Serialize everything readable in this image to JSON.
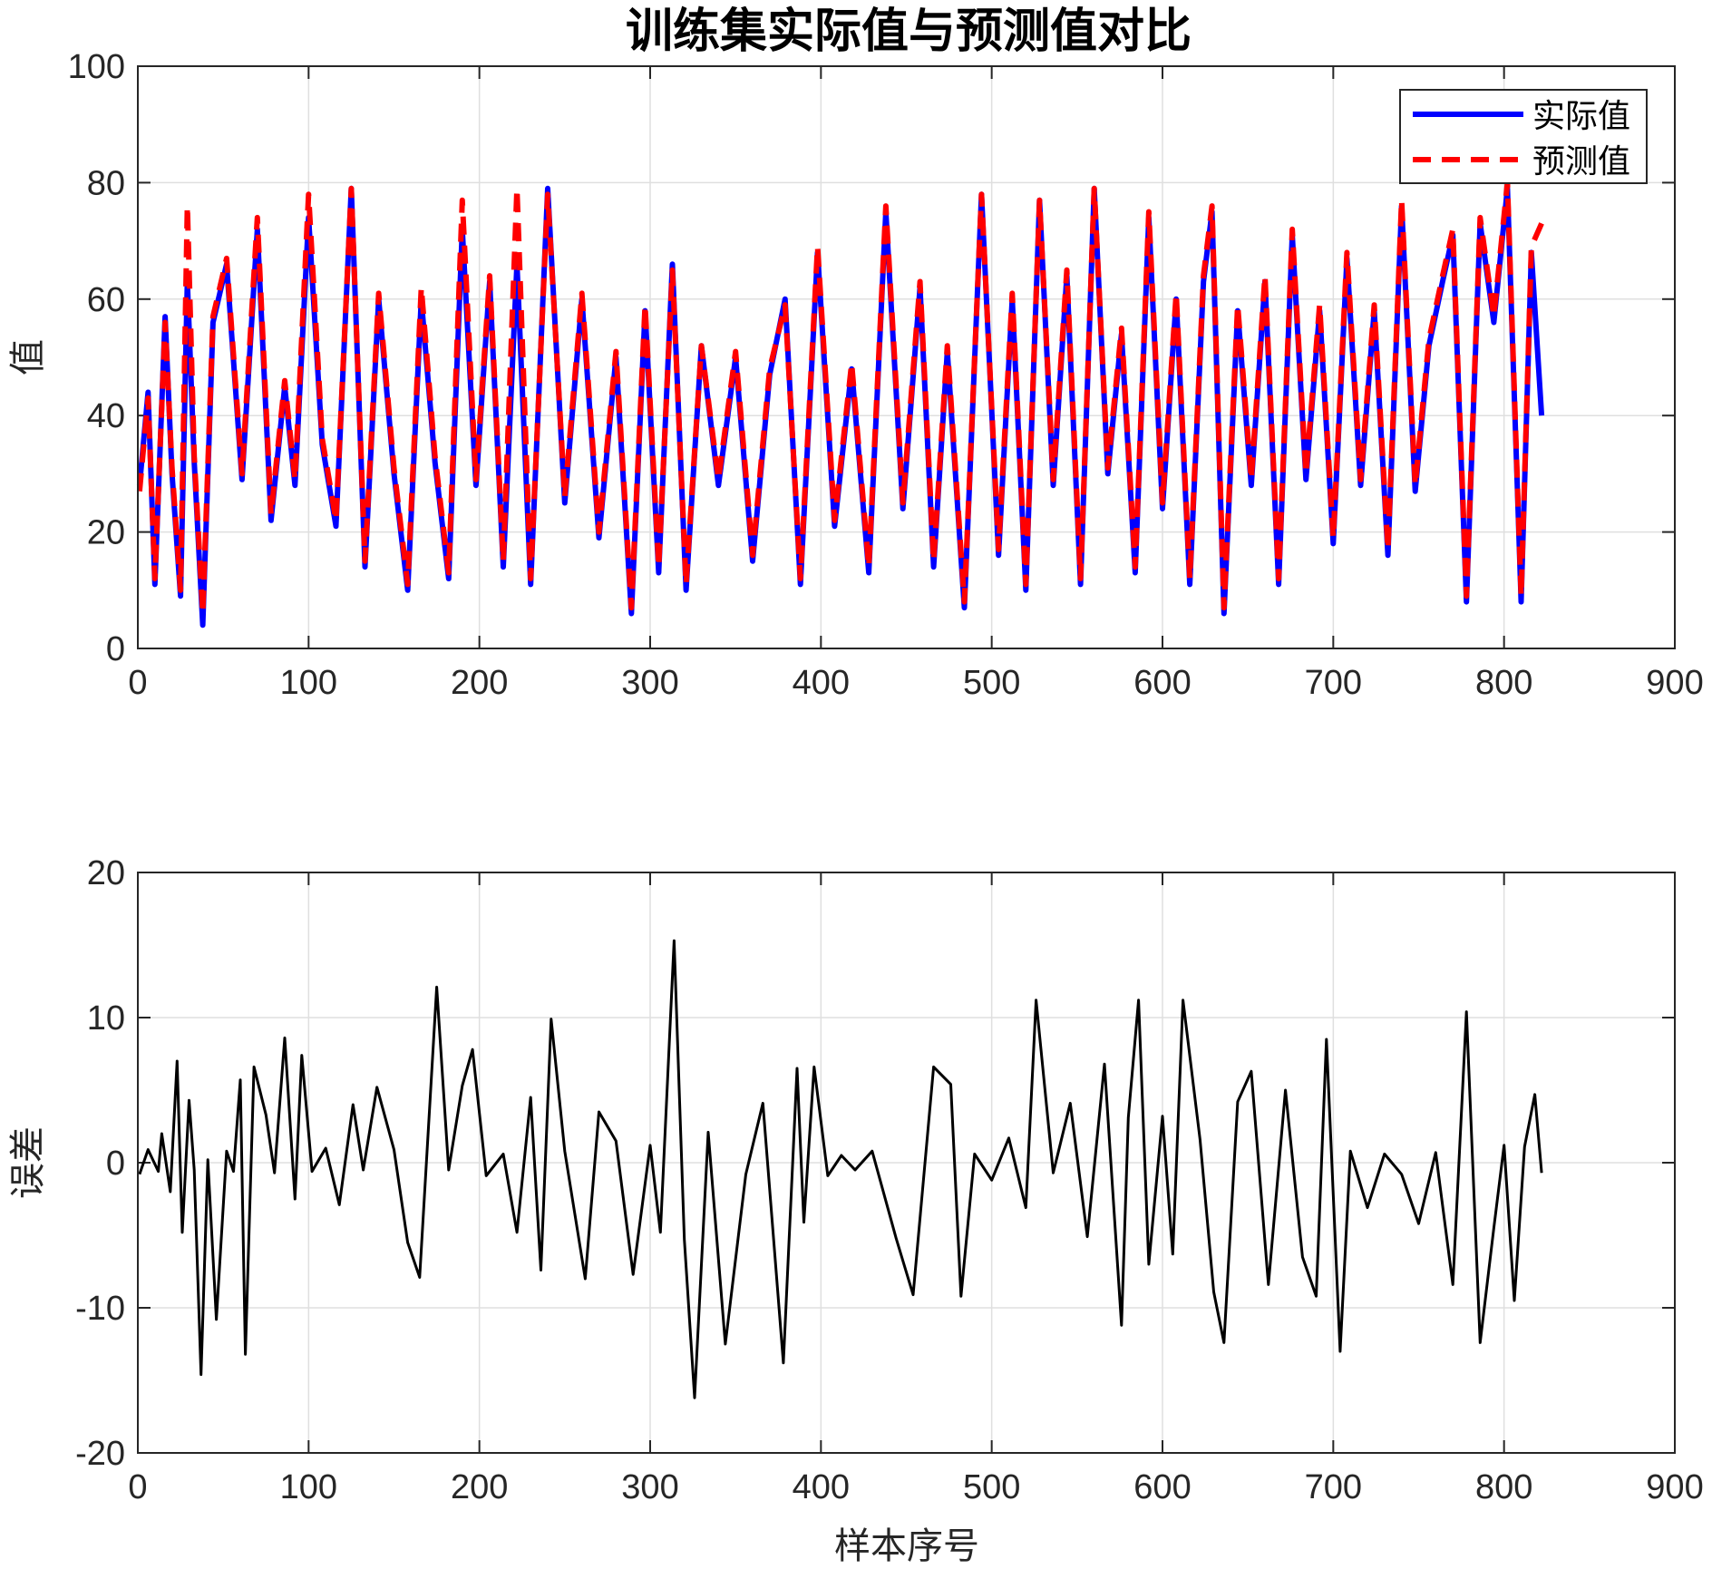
{
  "chart_data": [
    {
      "type": "line",
      "title": "训练集实际值与预测值对比",
      "xlabel": "",
      "ylabel": "值",
      "xlim": [
        0,
        900
      ],
      "ylim": [
        0,
        100
      ],
      "xticks": [
        0,
        100,
        200,
        300,
        400,
        500,
        600,
        700,
        800,
        900
      ],
      "yticks": [
        0,
        20,
        40,
        60,
        80,
        100
      ],
      "grid": true,
      "legend_position": "top-right",
      "series": [
        {
          "name": "实际值",
          "color": "#0000ff",
          "style": "solid",
          "x": [
            1,
            6,
            10,
            16,
            20,
            25,
            29,
            33,
            38,
            44,
            52,
            61,
            70,
            78,
            86,
            92,
            100,
            108,
            116,
            125,
            133,
            141,
            150,
            158,
            166,
            174,
            182,
            190,
            198,
            206,
            214,
            222,
            230,
            240,
            250,
            260,
            270,
            280,
            289,
            297,
            305,
            313,
            321,
            330,
            340,
            350,
            360,
            370,
            379,
            388,
            398,
            408,
            418,
            428,
            438,
            448,
            458,
            466,
            474,
            484,
            494,
            504,
            512,
            520,
            528,
            536,
            544,
            552,
            560,
            568,
            576,
            584,
            592,
            600,
            608,
            616,
            624,
            629,
            636,
            644,
            652,
            660,
            668,
            676,
            684,
            692,
            700,
            708,
            716,
            724,
            732,
            740,
            748,
            756,
            764,
            770,
            778,
            786,
            794,
            802,
            810,
            816,
            822
          ],
          "values": [
            28,
            44,
            11,
            57,
            30,
            9,
            63,
            32,
            4,
            56,
            66,
            29,
            72,
            22,
            45,
            28,
            74,
            35,
            21,
            79,
            14,
            60,
            30,
            10,
            60,
            32,
            12,
            72,
            28,
            63,
            14,
            66,
            11,
            79,
            25,
            60,
            19,
            50,
            6,
            58,
            13,
            66,
            10,
            52,
            28,
            50,
            15,
            47,
            60,
            11,
            68,
            21,
            48,
            13,
            75,
            24,
            62,
            14,
            51,
            7,
            78,
            16,
            60,
            10,
            77,
            28,
            64,
            11,
            79,
            30,
            54,
            13,
            74,
            24,
            60,
            11,
            63,
            75,
            6,
            58,
            28,
            63,
            11,
            71,
            29,
            58,
            18,
            67,
            28,
            58,
            16,
            76,
            27,
            52,
            63,
            71,
            8,
            73,
            56,
            79,
            8,
            68,
            40
          ]
        },
        {
          "name": "预测值",
          "color": "#ff0000",
          "style": "dashed",
          "x": [
            1,
            6,
            10,
            16,
            20,
            25,
            29,
            33,
            38,
            44,
            52,
            61,
            70,
            78,
            86,
            92,
            100,
            108,
            116,
            125,
            133,
            141,
            150,
            158,
            166,
            174,
            182,
            190,
            198,
            206,
            214,
            222,
            230,
            240,
            250,
            260,
            270,
            280,
            289,
            297,
            305,
            313,
            321,
            330,
            340,
            350,
            360,
            370,
            379,
            388,
            398,
            408,
            418,
            428,
            438,
            448,
            458,
            466,
            474,
            484,
            494,
            504,
            512,
            520,
            528,
            536,
            544,
            552,
            560,
            568,
            576,
            584,
            592,
            600,
            608,
            616,
            624,
            629,
            636,
            644,
            652,
            660,
            668,
            676,
            684,
            692,
            700,
            708,
            716,
            724,
            732,
            740,
            748,
            756,
            764,
            770,
            778,
            786,
            794,
            802,
            810,
            816,
            822
          ],
          "values": [
            27,
            43,
            12,
            56,
            31,
            10,
            76,
            33,
            6,
            57,
            67,
            30,
            74,
            23,
            46,
            29,
            78,
            36,
            22,
            79,
            15,
            61,
            31,
            11,
            62,
            33,
            13,
            77,
            29,
            64,
            15,
            79,
            12,
            78,
            26,
            61,
            20,
            51,
            7,
            59,
            14,
            65,
            11,
            52,
            29,
            51,
            16,
            48,
            59,
            12,
            69,
            22,
            49,
            14,
            76,
            25,
            63,
            15,
            52,
            8,
            78,
            17,
            61,
            11,
            77,
            29,
            65,
            12,
            79,
            31,
            55,
            14,
            75,
            25,
            61,
            12,
            64,
            76,
            7,
            59,
            29,
            64,
            12,
            72,
            30,
            59,
            19,
            68,
            29,
            59,
            17,
            77,
            28,
            53,
            64,
            72,
            9,
            74,
            57,
            80,
            9,
            69,
            73
          ]
        }
      ]
    },
    {
      "type": "line",
      "title": "",
      "xlabel": "样本序号",
      "ylabel": "误差",
      "xlim": [
        0,
        900
      ],
      "ylim": [
        -20,
        20
      ],
      "xticks": [
        0,
        100,
        200,
        300,
        400,
        500,
        600,
        700,
        800,
        900
      ],
      "yticks": [
        -20,
        -10,
        0,
        10,
        20
      ],
      "grid": true,
      "series": [
        {
          "color": "#000000",
          "style": "solid",
          "x": [
            1,
            6,
            12,
            14,
            19,
            23,
            26,
            30,
            33,
            37,
            41,
            46,
            52,
            56,
            60,
            63,
            68,
            75,
            80,
            86,
            92,
            96,
            102,
            110,
            118,
            126,
            132,
            140,
            150,
            158,
            165,
            175,
            182,
            190,
            196,
            204,
            214,
            222,
            230,
            236,
            242,
            250,
            262,
            270,
            280,
            290,
            300,
            306,
            314,
            320,
            326,
            334,
            344,
            356,
            366,
            378,
            386,
            390,
            396,
            404,
            412,
            420,
            430,
            444,
            454,
            466,
            476,
            482,
            490,
            500,
            510,
            520,
            526,
            536,
            546,
            556,
            566,
            576,
            580,
            586,
            592,
            600,
            606,
            612,
            622,
            630,
            636,
            644,
            652,
            662,
            672,
            682,
            690,
            696,
            704,
            710,
            720,
            730,
            740,
            750,
            760,
            770,
            778,
            786,
            794,
            800,
            806,
            812,
            818,
            822
          ],
          "values": [
            -0.8,
            0.9,
            -0.6,
            2,
            -2,
            7,
            -4.8,
            4.3,
            -0.5,
            -14.6,
            0.2,
            -10.8,
            0.8,
            -0.6,
            5.7,
            -13.2,
            6.6,
            3.3,
            -0.7,
            8.6,
            -2.5,
            7.4,
            -0.6,
            1,
            -2.9,
            4,
            -0.5,
            5.2,
            0.9,
            -5.5,
            -7.9,
            12.1,
            -0.5,
            5.3,
            7.8,
            -0.9,
            0.6,
            -4.8,
            4.5,
            -7.4,
            9.9,
            0.8,
            -8,
            3.5,
            1.5,
            -7.7,
            1.2,
            -4.8,
            15.3,
            -5.3,
            -16.2,
            2.1,
            -12.5,
            -0.8,
            4.1,
            -13.8,
            6.5,
            -4.1,
            6.6,
            -0.9,
            0.5,
            -0.5,
            0.8,
            -5.2,
            -9.1,
            6.6,
            5.4,
            -9.2,
            0.6,
            -1.2,
            1.7,
            -3.1,
            11.2,
            -0.7,
            4.1,
            -5.1,
            6.8,
            -11.2,
            3.1,
            11.2,
            -7,
            3.2,
            -6.3,
            11.2,
            1.6,
            -8.9,
            -12.4,
            4.2,
            6.3,
            -8.4,
            5,
            -6.5,
            -9.2,
            8.5,
            -13,
            0.8,
            -3.1,
            0.6,
            -0.8,
            -4.2,
            0.7,
            -8.4,
            10.4,
            -12.4,
            -4.5,
            1.2,
            -9.5,
            1.1,
            4.7,
            -0.7
          ]
        }
      ]
    }
  ]
}
